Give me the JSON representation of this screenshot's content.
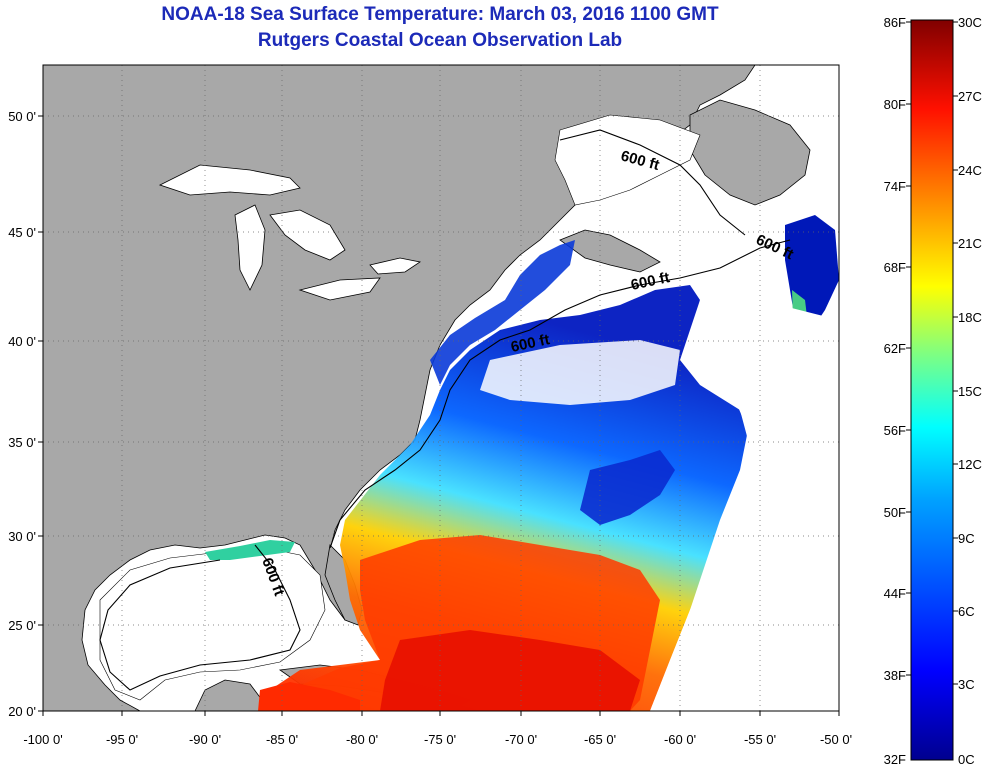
{
  "header": {
    "title": "NOAA-18 Sea Surface Temperature:  March 03, 2016 1100 GMT",
    "subtitle": "Rutgers Coastal Ocean Observation Lab"
  },
  "map": {
    "lon_ticks": [
      "-100 0'",
      "-95 0'",
      "-90 0'",
      "-85 0'",
      "-80 0'",
      "-75 0'",
      "-70 0'",
      "-65 0'",
      "-60 0'",
      "-55 0'",
      "-50 0'"
    ],
    "lat_ticks": [
      "20 0'",
      "25 0'",
      "30 0'",
      "35 0'",
      "40 0'",
      "45 0'",
      "50 0'"
    ],
    "isobath_labels": [
      "600 ft",
      "600 ft",
      "600 ft",
      "600 ft",
      "600 ft"
    ],
    "colors": {
      "land": "#a8a8a8",
      "cloud": "#ffffff",
      "warm": "#ff3000",
      "cold": "#0022cc"
    }
  },
  "colorbar": {
    "f_labels": [
      "86F",
      "80F",
      "74F",
      "68F",
      "62F",
      "56F",
      "50F",
      "44F",
      "38F",
      "32F"
    ],
    "c_labels": [
      "30C",
      "27C",
      "24C",
      "21C",
      "18C",
      "15C",
      "12C",
      "9C",
      "6C",
      "3C",
      "0C"
    ],
    "colors": [
      "#00008f",
      "#0000ff",
      "#0080ff",
      "#00ffff",
      "#80ff80",
      "#ffff00",
      "#ff8000",
      "#ff0000",
      "#800000"
    ]
  }
}
